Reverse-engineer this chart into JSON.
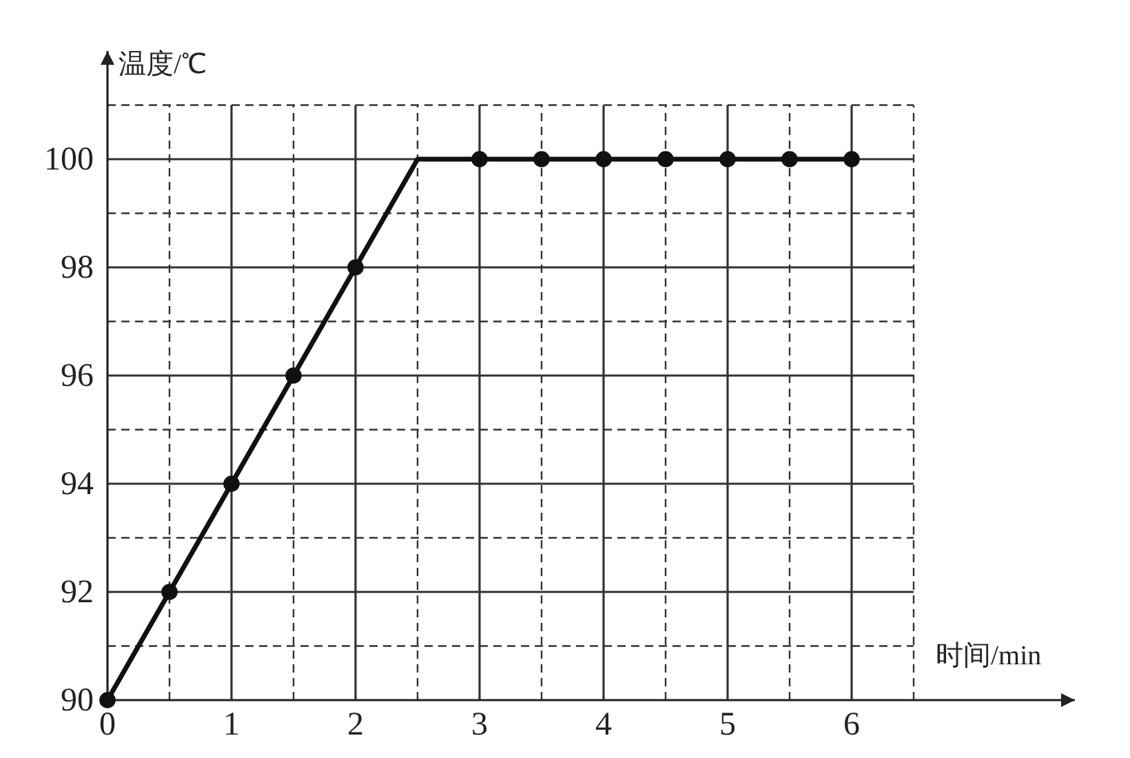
{
  "chart_data": {
    "type": "line",
    "xlabel": "时间/min",
    "ylabel": "温度/℃",
    "xlim": [
      0,
      7.8
    ],
    "ylim": [
      90,
      102
    ],
    "xticks": [
      0,
      1,
      2,
      3,
      4,
      5,
      6
    ],
    "yticks": [
      90,
      92,
      94,
      96,
      98,
      100
    ],
    "grid": true,
    "marker": "none",
    "line_style": "solid",
    "series": [
      {
        "color": "#111111",
        "x": [
          0,
          0.5,
          1,
          1.5,
          2,
          2.5,
          3,
          3.5,
          4,
          4.5,
          5,
          5.5,
          6
        ],
        "values": [
          90,
          92,
          94,
          96,
          98,
          100,
          100,
          100,
          100,
          100,
          100,
          100,
          100
        ]
      },
      {
        "type": "scatter",
        "color": "#111111",
        "marker": "circle",
        "x": [
          0,
          0.5,
          1,
          1.5,
          2,
          3,
          3.5,
          4,
          4.5,
          5,
          5.5,
          6
        ],
        "values": [
          90,
          92,
          94,
          96,
          98,
          100,
          100,
          100,
          100,
          100,
          100,
          100
        ]
      }
    ]
  }
}
